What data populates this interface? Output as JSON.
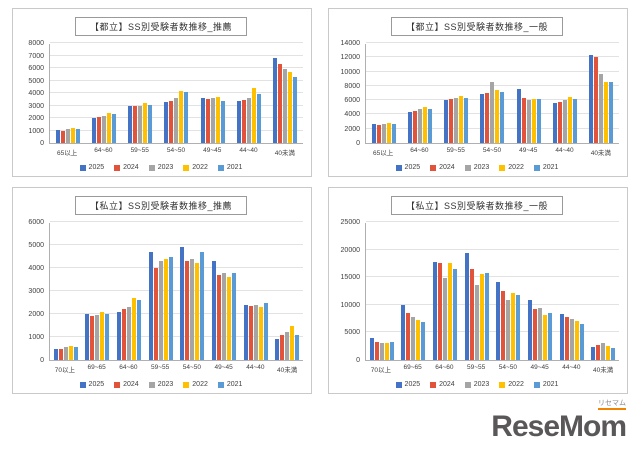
{
  "page": {
    "background": "#ffffff"
  },
  "footer": {
    "logo_text": "ReseMom",
    "logo_kana": "リセマム",
    "logo_color": "#595757",
    "logo_accent": "#f08300"
  },
  "chart_data": [
    {
      "type": "bar",
      "title": "【都立】SS別受験者数推移_推薦",
      "categories": [
        "65以上",
        "64~60",
        "59~55",
        "54~50",
        "49~45",
        "44~40",
        "40未満"
      ],
      "xlabel": "",
      "ylabel": "",
      "ylim": [
        0,
        8000
      ],
      "ytick": 1000,
      "grid": true,
      "legend_position": "bottom",
      "series": [
        {
          "name": "2025",
          "color": "#4472c4",
          "values": [
            1050,
            2000,
            2950,
            3300,
            3600,
            3400,
            6800
          ]
        },
        {
          "name": "2024",
          "color": "#e2533c",
          "values": [
            1000,
            2050,
            3000,
            3400,
            3500,
            3450,
            6300
          ]
        },
        {
          "name": "2023",
          "color": "#a5a5a5",
          "values": [
            1100,
            2200,
            3000,
            3600,
            3600,
            3600,
            5900
          ]
        },
        {
          "name": "2022",
          "color": "#ffc000",
          "values": [
            1200,
            2400,
            3200,
            4200,
            3700,
            4400,
            5700
          ]
        },
        {
          "name": "2021",
          "color": "#5b9bd5",
          "values": [
            1150,
            2300,
            3050,
            4100,
            3400,
            3950,
            5300
          ]
        }
      ]
    },
    {
      "type": "bar",
      "title": "【都立】SS別受験者数推移_一般",
      "categories": [
        "65以上",
        "64~60",
        "59~55",
        "54~50",
        "49~45",
        "44~40",
        "40未満"
      ],
      "xlabel": "",
      "ylabel": "",
      "ylim": [
        0,
        14000
      ],
      "ytick": 2000,
      "grid": true,
      "legend_position": "bottom",
      "series": [
        {
          "name": "2025",
          "color": "#4472c4",
          "values": [
            2600,
            4400,
            6000,
            6800,
            7600,
            5600,
            12300
          ]
        },
        {
          "name": "2024",
          "color": "#e2533c",
          "values": [
            2500,
            4500,
            6100,
            7000,
            6300,
            5800,
            12100
          ]
        },
        {
          "name": "2023",
          "color": "#a5a5a5",
          "values": [
            2600,
            4800,
            6300,
            8600,
            6000,
            6000,
            9700
          ]
        },
        {
          "name": "2022",
          "color": "#ffc000",
          "values": [
            2800,
            5000,
            6600,
            7400,
            6200,
            6400,
            8600
          ]
        },
        {
          "name": "2021",
          "color": "#5b9bd5",
          "values": [
            2700,
            4800,
            6300,
            7200,
            6100,
            6200,
            8500
          ]
        }
      ]
    },
    {
      "type": "bar",
      "title": "【私立】SS別受験者数推移_推薦",
      "categories": [
        "70以上",
        "69~65",
        "64~60",
        "59~55",
        "54~50",
        "49~45",
        "44~40",
        "40未満"
      ],
      "xlabel": "",
      "ylabel": "",
      "ylim": [
        0,
        6000
      ],
      "ytick": 1000,
      "grid": true,
      "legend_position": "bottom",
      "series": [
        {
          "name": "2025",
          "color": "#4472c4",
          "values": [
            500,
            2000,
            2100,
            4700,
            4900,
            4300,
            2400,
            900
          ]
        },
        {
          "name": "2024",
          "color": "#e2533c",
          "values": [
            500,
            1900,
            2200,
            4000,
            4300,
            3700,
            2350,
            1100
          ]
        },
        {
          "name": "2023",
          "color": "#a5a5a5",
          "values": [
            550,
            1950,
            2300,
            4300,
            4400,
            3800,
            2400,
            1200
          ]
        },
        {
          "name": "2022",
          "color": "#ffc000",
          "values": [
            600,
            2100,
            2700,
            4400,
            4200,
            3600,
            2300,
            1500
          ]
        },
        {
          "name": "2021",
          "color": "#5b9bd5",
          "values": [
            550,
            2000,
            2600,
            4500,
            4700,
            3800,
            2500,
            1100
          ]
        }
      ]
    },
    {
      "type": "bar",
      "title": "【私立】SS別受験者数推移_一般",
      "categories": [
        "70以上",
        "69~65",
        "64~60",
        "59~55",
        "54~50",
        "49~45",
        "44~40",
        "40未満"
      ],
      "xlabel": "",
      "ylabel": "",
      "ylim": [
        0,
        25000
      ],
      "ytick": 5000,
      "grid": true,
      "legend_position": "bottom",
      "series": [
        {
          "name": "2025",
          "color": "#4472c4",
          "values": [
            4000,
            10000,
            17800,
            19300,
            14200,
            10800,
            8300,
            2300
          ]
        },
        {
          "name": "2024",
          "color": "#e2533c",
          "values": [
            3200,
            8500,
            17500,
            16500,
            12500,
            9200,
            7800,
            2700
          ]
        },
        {
          "name": "2023",
          "color": "#a5a5a5",
          "values": [
            3000,
            7800,
            14800,
            13500,
            10800,
            9500,
            7400,
            3000
          ]
        },
        {
          "name": "2022",
          "color": "#ffc000",
          "values": [
            3100,
            7200,
            17600,
            15500,
            12200,
            8200,
            7000,
            2500
          ]
        },
        {
          "name": "2021",
          "color": "#5b9bd5",
          "values": [
            3300,
            6800,
            16400,
            15800,
            11800,
            8500,
            6600,
            2200
          ]
        }
      ]
    }
  ]
}
